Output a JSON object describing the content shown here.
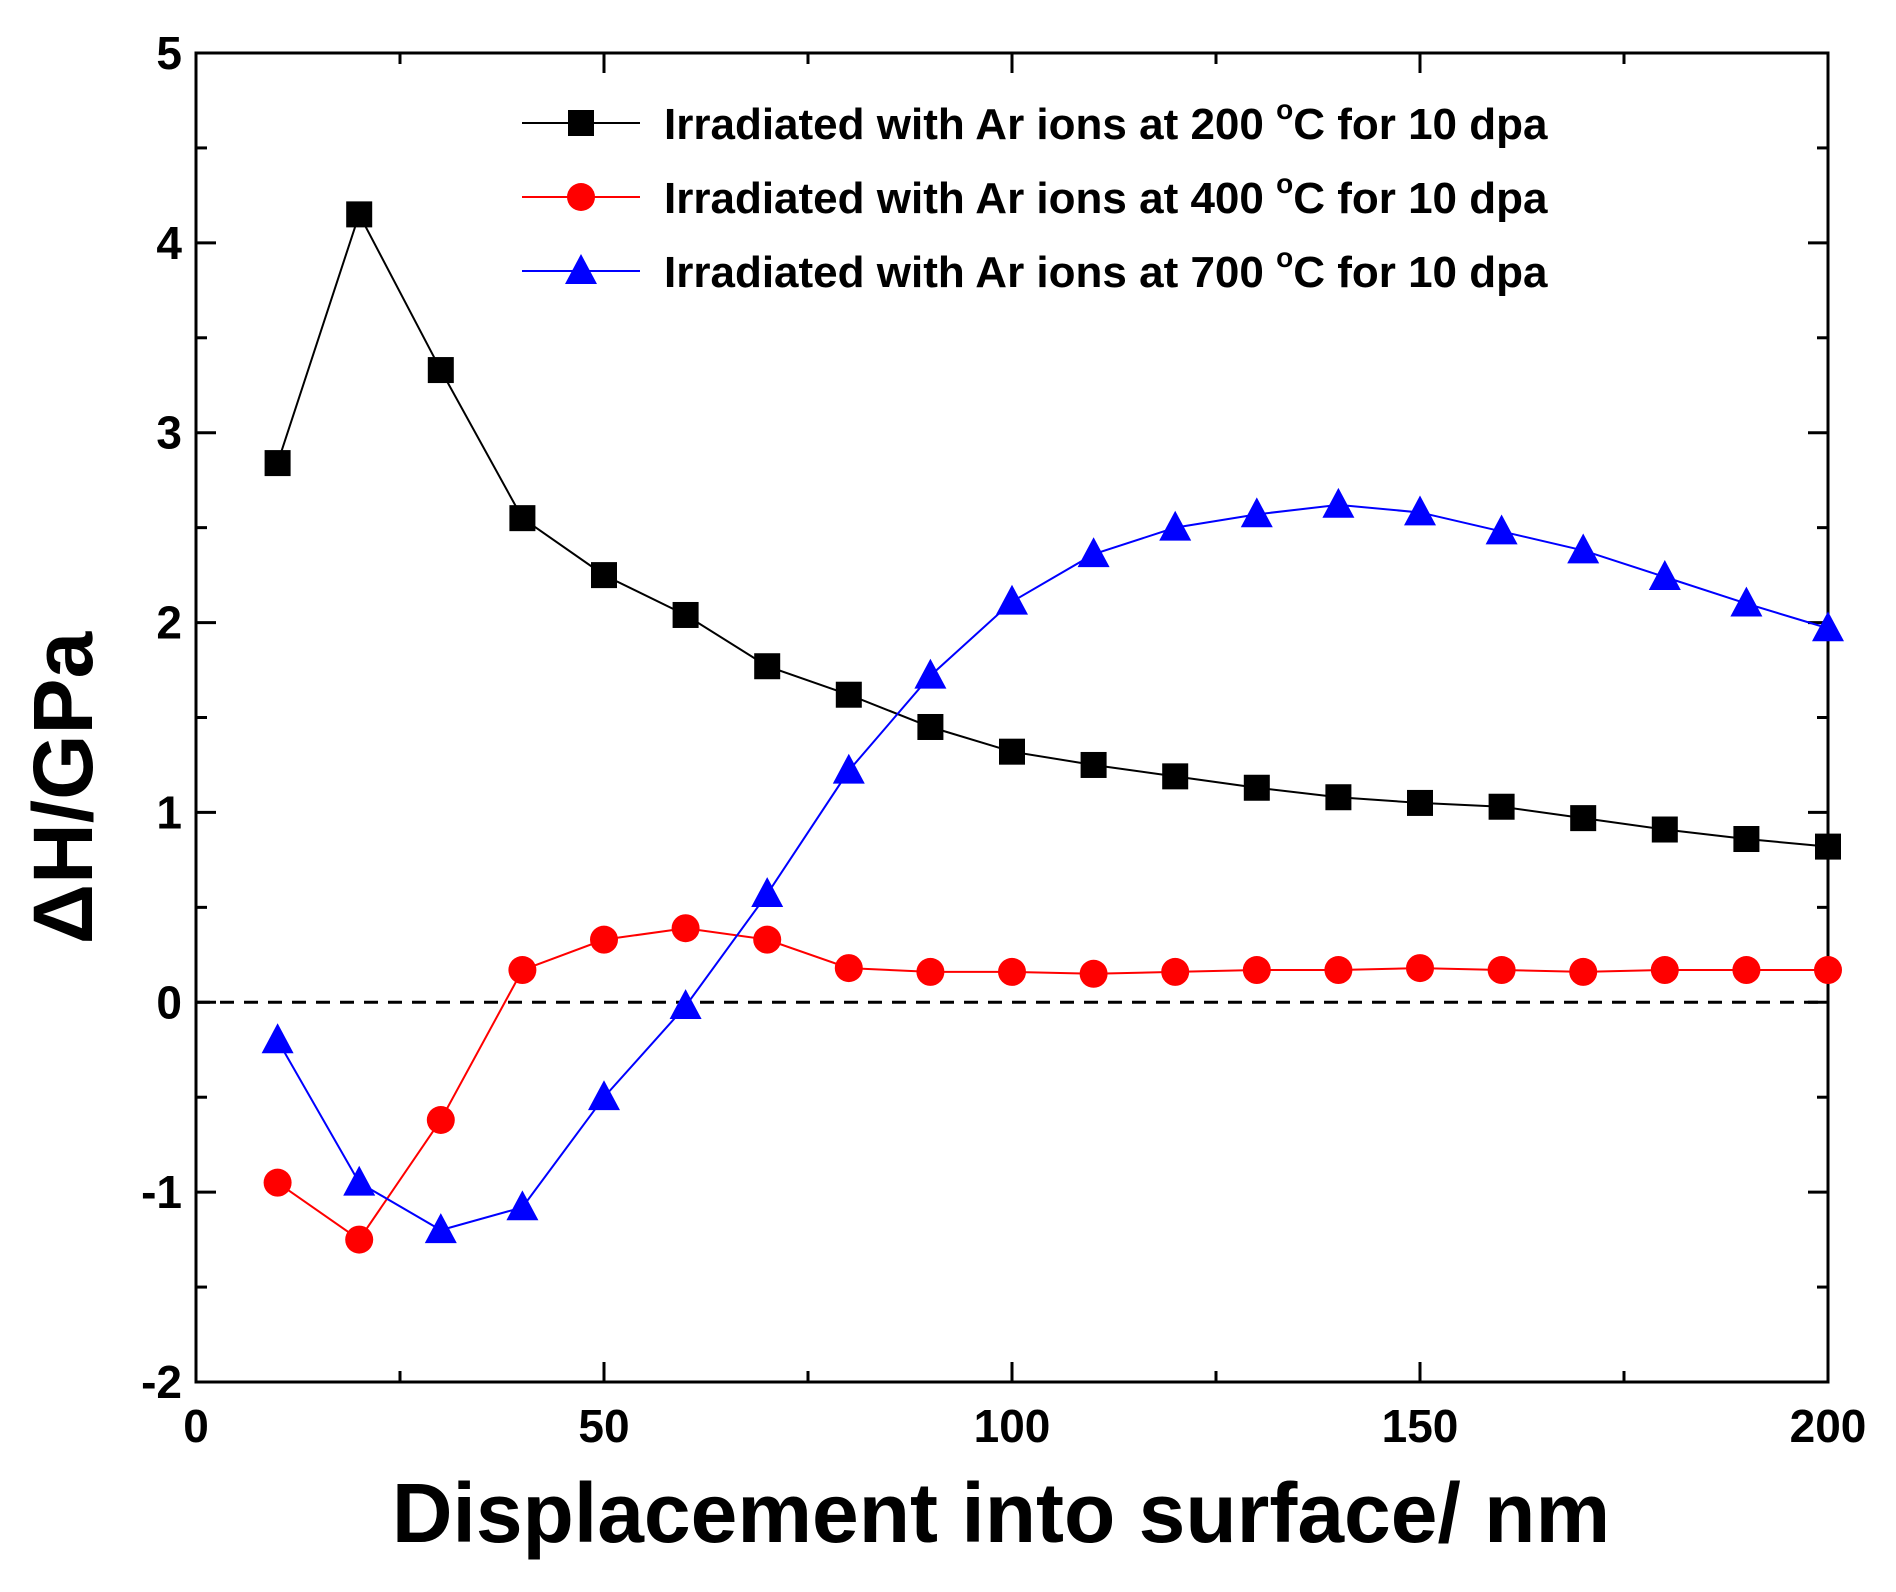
{
  "chart_data": {
    "type": "line",
    "xlabel": "Displacement into surface/ nm",
    "ylabel": "ΔH/GPa",
    "xlim": [
      0,
      200
    ],
    "ylim": [
      -2,
      5
    ],
    "xticks": [
      0,
      50,
      100,
      150,
      200
    ],
    "yticks": [
      -2,
      -1,
      0,
      1,
      2,
      3,
      4,
      5
    ],
    "xtick_labels": [
      "0",
      "50",
      "100",
      "150",
      "200"
    ],
    "ytick_labels": [
      "-2",
      "-1",
      "0",
      "1",
      "2",
      "3",
      "4",
      "5"
    ],
    "reference_line": {
      "y": 0,
      "style": "dashed"
    },
    "grid": false,
    "legend_position": "top-right",
    "series": [
      {
        "name_prefix": "Irradiated with Ar ions at 200 ",
        "name_degree": "o",
        "name_suffix": "C for 10 dpa",
        "color": "#000000",
        "marker": "square",
        "x": [
          10,
          20,
          30,
          40,
          50,
          60,
          70,
          80,
          90,
          100,
          110,
          120,
          130,
          140,
          150,
          160,
          170,
          180,
          190,
          200
        ],
        "y": [
          2.84,
          4.15,
          3.33,
          2.55,
          2.25,
          2.04,
          1.77,
          1.62,
          1.45,
          1.32,
          1.25,
          1.19,
          1.13,
          1.08,
          1.05,
          1.03,
          0.97,
          0.91,
          0.86,
          0.82
        ]
      },
      {
        "name_prefix": "Irradiated with Ar ions at 400 ",
        "name_degree": "o",
        "name_suffix": "C for 10 dpa",
        "color": "#ff0000",
        "marker": "circle",
        "x": [
          10,
          20,
          30,
          40,
          50,
          60,
          70,
          80,
          90,
          100,
          110,
          120,
          130,
          140,
          150,
          160,
          170,
          180,
          190,
          200
        ],
        "y": [
          -0.95,
          -1.25,
          -0.62,
          0.17,
          0.33,
          0.39,
          0.33,
          0.18,
          0.16,
          0.16,
          0.15,
          0.16,
          0.17,
          0.17,
          0.18,
          0.17,
          0.16,
          0.17,
          0.17,
          0.17
        ]
      },
      {
        "name_prefix": "Irradiated with Ar ions at 700 ",
        "name_degree": "o",
        "name_suffix": "C for 10 dpa",
        "color": "#0000ff",
        "marker": "triangle",
        "x": [
          10,
          20,
          30,
          40,
          50,
          60,
          70,
          80,
          90,
          100,
          110,
          120,
          130,
          140,
          150,
          160,
          170,
          180,
          190,
          200
        ],
        "y": [
          -0.2,
          -0.95,
          -1.2,
          -1.08,
          -0.5,
          -0.02,
          0.57,
          1.22,
          1.72,
          2.11,
          2.36,
          2.5,
          2.57,
          2.62,
          2.58,
          2.48,
          2.38,
          2.24,
          2.1,
          1.97
        ]
      }
    ]
  }
}
